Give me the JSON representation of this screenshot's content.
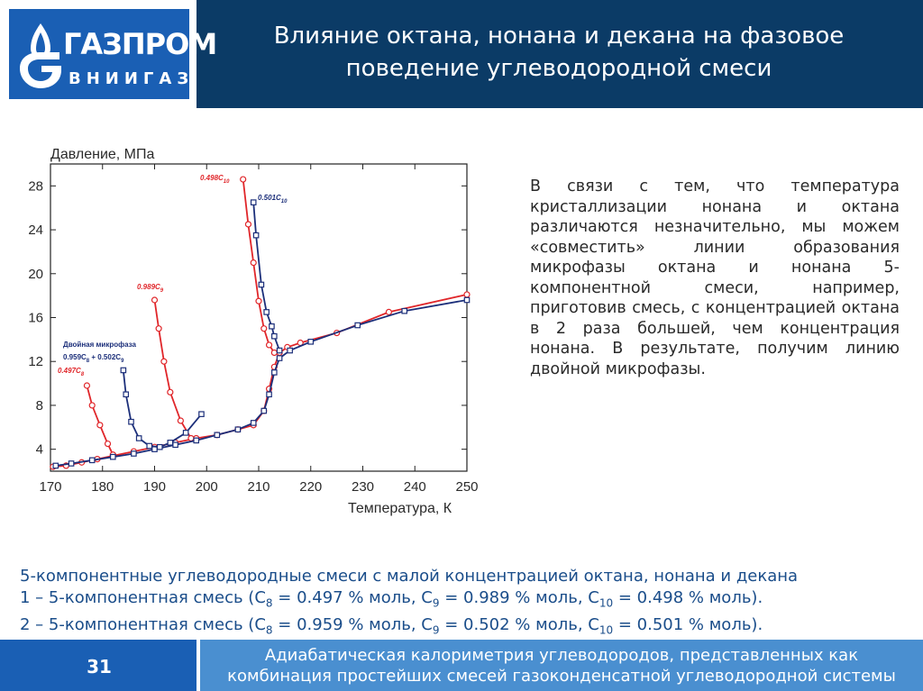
{
  "logo": {
    "name": "ГАЗПРОМ",
    "subtitle": "ВНИИГАЗ",
    "icon": "gazprom-flame-icon",
    "brand_color": "#1a5fb4"
  },
  "header": {
    "title_line1": "Влияние октана, нонана и декана на фазовое",
    "title_line2": "поведение углеводородной смеси",
    "background": "#0b3b66"
  },
  "chart_data": {
    "type": "line",
    "title": "",
    "xlabel": "Температура, К",
    "ylabel": "Давление, МПа",
    "xlim": [
      170,
      250
    ],
    "ylim": [
      2,
      30
    ],
    "xticks": [
      170,
      180,
      190,
      200,
      210,
      220,
      230,
      240,
      250
    ],
    "yticks": [
      4,
      8,
      12,
      16,
      20,
      24,
      28
    ],
    "grid": false,
    "series": [
      {
        "name": "1",
        "color": "#e0262a",
        "marker": "circle",
        "segments": [
          [
            [
              170.5,
              2.4
            ],
            [
              173,
              2.5
            ],
            [
              176,
              2.8
            ],
            [
              179,
              3.1
            ],
            [
              182,
              3.4
            ],
            [
              186,
              3.8
            ],
            [
              190,
              4.2
            ],
            [
              194,
              4.6
            ],
            [
              198,
              5.0
            ],
            [
              202,
              5.3
            ],
            [
              206,
              5.8
            ],
            [
              209,
              6.2
            ],
            [
              211,
              7.5
            ],
            [
              212,
              9.5
            ],
            [
              213,
              11.5
            ],
            [
              214,
              12.8
            ],
            [
              215.5,
              13.3
            ],
            [
              218,
              13.7
            ],
            [
              225,
              14.6
            ],
            [
              235,
              16.5
            ],
            [
              250,
              18.1
            ]
          ],
          [
            [
              177,
              9.8
            ],
            [
              178,
              8.0
            ],
            [
              179.5,
              6.2
            ],
            [
              181,
              4.5
            ],
            [
              182,
              3.5
            ]
          ],
          [
            [
              190,
              17.6
            ],
            [
              190.8,
              15.0
            ],
            [
              191.8,
              12.0
            ],
            [
              193,
              9.2
            ],
            [
              195,
              6.6
            ],
            [
              197,
              5.0
            ]
          ],
          [
            [
              207,
              28.6
            ],
            [
              208,
              24.5
            ],
            [
              209,
              21.0
            ],
            [
              210,
              17.5
            ],
            [
              211,
              15.0
            ],
            [
              212,
              13.5
            ],
            [
              213,
              12.8
            ]
          ]
        ],
        "labels": [
          "0.497C₈",
          "0.989C₉",
          "0.498C₁₀"
        ]
      },
      {
        "name": "2",
        "color": "#1c2f7a",
        "marker": "square",
        "segments": [
          [
            [
              171,
              2.5
            ],
            [
              174,
              2.7
            ],
            [
              178,
              3.0
            ],
            [
              182,
              3.3
            ],
            [
              186,
              3.6
            ],
            [
              190,
              4.0
            ],
            [
              194,
              4.4
            ],
            [
              198,
              4.8
            ],
            [
              202,
              5.3
            ],
            [
              206,
              5.8
            ],
            [
              209,
              6.4
            ],
            [
              211,
              7.5
            ],
            [
              212,
              9.0
            ],
            [
              213,
              11.0
            ],
            [
              214,
              12.3
            ],
            [
              216,
              13.0
            ],
            [
              220,
              13.8
            ],
            [
              229,
              15.3
            ],
            [
              238,
              16.6
            ],
            [
              250,
              17.6
            ]
          ],
          [
            [
              184,
              11.2
            ],
            [
              184.5,
              9.0
            ],
            [
              185.5,
              6.5
            ],
            [
              187,
              5.0
            ],
            [
              189,
              4.3
            ],
            [
              191,
              4.2
            ],
            [
              193,
              4.6
            ],
            [
              196,
              5.5
            ],
            [
              199,
              7.2
            ]
          ],
          [
            [
              209,
              26.5
            ],
            [
              209.5,
              23.5
            ],
            [
              210.5,
              19.0
            ],
            [
              211.5,
              16.5
            ],
            [
              212.5,
              15.2
            ],
            [
              213,
              14.3
            ],
            [
              214,
              13.0
            ]
          ]
        ],
        "labels": [
          "0.501C₁₀"
        ]
      }
    ],
    "annotations": [
      "Двойная микрофаза",
      "0.959C₈ + 0.502C₉"
    ]
  },
  "chart_labels": {
    "red_c8": "0.497C",
    "red_c8_sub": "8",
    "red_c9": "0.989C",
    "red_c9_sub": "9",
    "red_c10": "0.498C",
    "red_c10_sub": "10",
    "blue_c10": "0.501C",
    "blue_c10_sub": "10",
    "micro_title": "Двойная микрофаза",
    "micro_a": "0.959C",
    "micro_a_sub": "8",
    "micro_plus": " + 0.502C",
    "micro_b_sub": "9"
  },
  "side_text": "В связи с тем, что температура кристаллизации нонана и октана различаются незначительно, мы можем «совместить» линии образования микрофазы октана и нонана 5-компонентной смеси, например, приготовив смесь, с концентрацией октана в 2 раза большей, чем концентрация нонана. В результате, получим линию двойной микрофазы.",
  "caption": {
    "line1": "5-компонентные углеводородные смеси с малой концентрацией октана, нонана и декана",
    "line2_prefix": "1 – 5-компонентная смесь (C",
    "line2_c8": "8",
    "line2_mid1": " = 0.497 % моль, C",
    "line2_c9": "9",
    "line2_mid2": " = 0.989 % моль, C",
    "line2_c10": "10",
    "line2_end": " = 0.498 % моль).",
    "line3_prefix": "2 – 5-компонентная смесь (C",
    "line3_c8": "8",
    "line3_mid1": " = 0.959 % моль, C",
    "line3_c9": "9",
    "line3_mid2": " = 0.502 % моль, C",
    "line3_c10": "10",
    "line3_end": " = 0.501 % моль)."
  },
  "footer": {
    "page_number": "31",
    "text_line1": "Адиабатическая калориметрия углеводородов, представленных как",
    "text_line2": "комбинация простейших смесей газоконденсатной углеводородной системы"
  }
}
